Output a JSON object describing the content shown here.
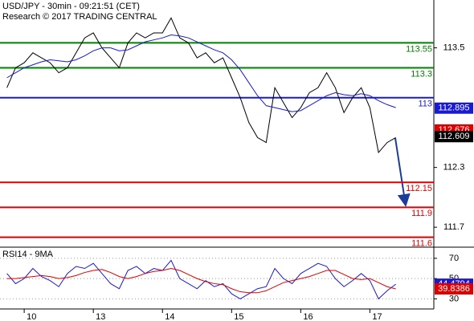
{
  "chart_data": [
    {
      "type": "line",
      "title": "USD/JPY - 30min - 09:21:51 (CET)",
      "subtitle": "Research © 2017 TRADING CENTRAL",
      "xlim": [
        -0.8,
        49.4
      ],
      "xticks": [
        {
          "value": 2,
          "label": "10"
        },
        {
          "value": 10,
          "label": "13"
        },
        {
          "value": 18,
          "label": "14"
        },
        {
          "value": 26,
          "label": "15"
        },
        {
          "value": 34,
          "label": "16"
        },
        {
          "value": 42,
          "label": "17"
        }
      ],
      "ylim": [
        111.5,
        113.98
      ],
      "yticks": [
        113.5,
        112.3,
        111.7
      ],
      "series": [
        {
          "color": "#000000",
          "values": [
            113.1,
            113.3,
            113.35,
            113.45,
            113.4,
            113.35,
            113.25,
            113.3,
            113.45,
            113.6,
            113.65,
            113.5,
            113.4,
            113.3,
            113.55,
            113.65,
            113.6,
            113.65,
            113.65,
            113.8,
            113.6,
            113.55,
            113.4,
            113.45,
            113.35,
            113.4,
            113.2,
            113.0,
            112.75,
            112.6,
            112.55,
            113.1,
            112.95,
            112.8,
            112.9,
            113.05,
            113.1,
            113.25,
            113.1,
            112.85,
            113.0,
            113.1,
            112.9,
            112.45,
            112.55,
            112.6
          ]
        },
        {
          "color": "#1a1ad0",
          "values": [
            113.2,
            113.25,
            113.3,
            113.33,
            113.36,
            113.38,
            113.37,
            113.36,
            113.38,
            113.42,
            113.47,
            113.5,
            113.5,
            113.47,
            113.48,
            113.52,
            113.56,
            113.58,
            113.6,
            113.63,
            113.62,
            113.6,
            113.56,
            113.52,
            113.48,
            113.45,
            113.38,
            113.28,
            113.15,
            113.02,
            112.92,
            112.9,
            112.88,
            112.86,
            112.87,
            112.92,
            112.97,
            113.02,
            113.05,
            113.03,
            113.02,
            113.04,
            113.02,
            112.97,
            112.93,
            112.9
          ]
        }
      ],
      "levels": [
        {
          "value": 113.55,
          "color": "#008000"
        },
        {
          "value": 113.3,
          "color": "#008000"
        },
        {
          "value": 113,
          "color": "#1a1ad0"
        },
        {
          "value": 112.15,
          "color": "#e00000"
        },
        {
          "value": 111.9,
          "color": "#e00000"
        },
        {
          "value": 111.6,
          "color": "#e00000"
        }
      ],
      "price_tags": [
        {
          "value": 112.895,
          "color": "#1a1ad0"
        },
        {
          "value": 112.676,
          "color": "#e00000"
        },
        {
          "value": 112.609,
          "color": "#000000"
        }
      ]
    },
    {
      "type": "line",
      "title": "RSI14 - 9MA",
      "xlim": [
        -0.8,
        49.4
      ],
      "ylim": [
        20,
        81
      ],
      "yticks": [
        70,
        50,
        30
      ],
      "series": [
        {
          "color": "#1a1ad0",
          "values": [
            55,
            45,
            50,
            60,
            52,
            48,
            42,
            55,
            62,
            60,
            65,
            55,
            45,
            40,
            58,
            62,
            55,
            60,
            58,
            68,
            50,
            45,
            40,
            48,
            42,
            45,
            35,
            30,
            35,
            40,
            42,
            60,
            50,
            45,
            55,
            60,
            65,
            62,
            50,
            42,
            48,
            55,
            48,
            30,
            38,
            44.48
          ]
        },
        {
          "color": "#e00000",
          "values": [
            50,
            50,
            51,
            52,
            53,
            52,
            50,
            51,
            53,
            56,
            58,
            59,
            56,
            52,
            50,
            52,
            55,
            57,
            58,
            60,
            58,
            54,
            50,
            47,
            45,
            44,
            40,
            37,
            36,
            36,
            38,
            42,
            46,
            48,
            50,
            52,
            55,
            58,
            58,
            54,
            50,
            49,
            50,
            46,
            42,
            39.84
          ]
        }
      ],
      "price_tags": [
        {
          "value": 44.4794,
          "color": "#1a1ad0"
        },
        {
          "value": 39.8386,
          "color": "#e00000"
        }
      ]
    }
  ]
}
